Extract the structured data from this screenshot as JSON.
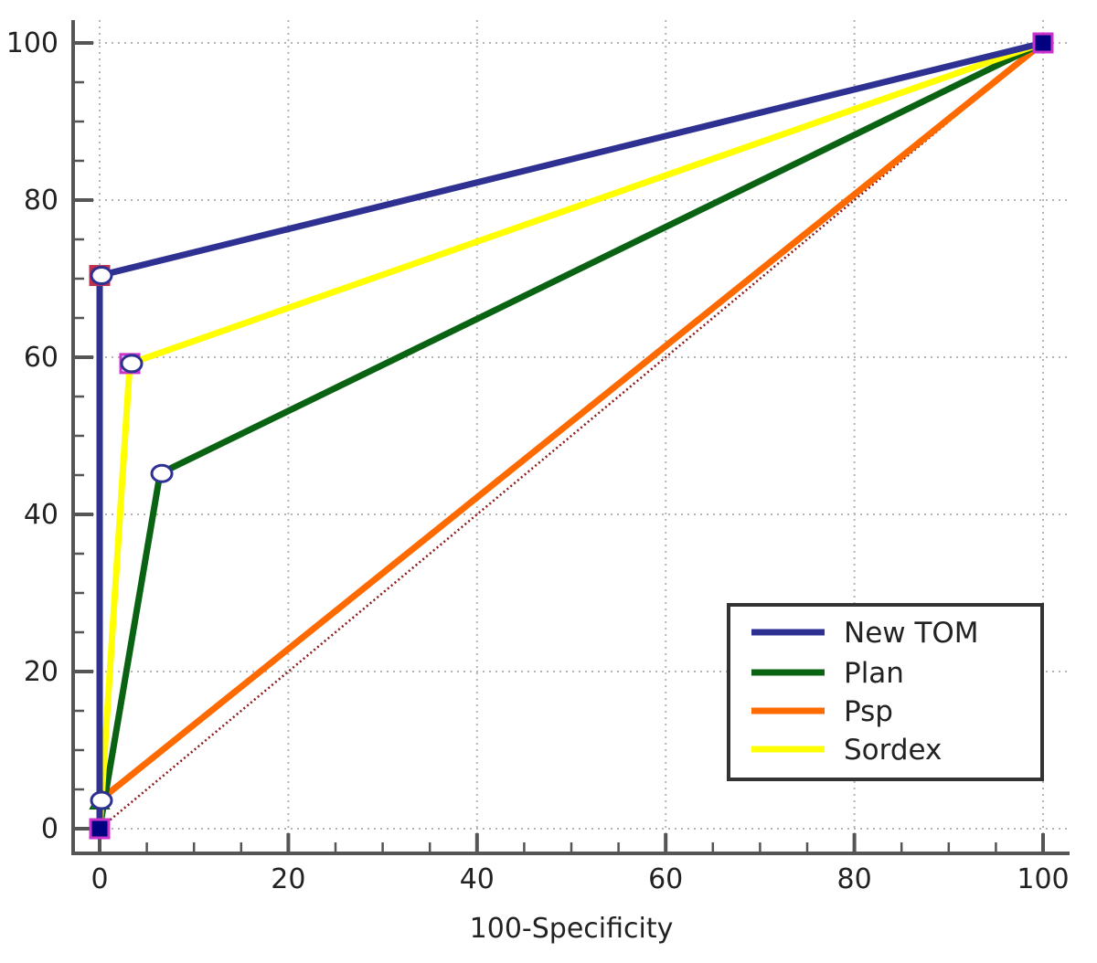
{
  "chart_data": {
    "type": "line",
    "title": "",
    "xlabel": "100-Specificity",
    "ylabel": "",
    "xlim": [
      0,
      100
    ],
    "ylim": [
      0,
      100
    ],
    "x_ticks": [
      0,
      20,
      40,
      60,
      80,
      100
    ],
    "y_ticks": [
      0,
      20,
      40,
      60,
      80,
      100
    ],
    "x_tick_labels": [
      "0",
      "20",
      "40",
      "60",
      "80",
      "100"
    ],
    "y_tick_labels": [
      "0",
      "20",
      "40",
      "60",
      "80",
      "100"
    ],
    "grid": true,
    "legend_position": "bottom-right",
    "reference_line": {
      "x": [
        0,
        100
      ],
      "y": [
        0,
        100
      ],
      "color": "#8b1a1a",
      "style": "dotted"
    },
    "series": [
      {
        "name": "New TOM",
        "color": "#2e3192",
        "x": [
          0,
          0,
          100
        ],
        "y": [
          0,
          70.4,
          100
        ]
      },
      {
        "name": "Plan",
        "color": "#0a6312",
        "x": [
          0,
          6.4,
          100
        ],
        "y": [
          0,
          45.2,
          100
        ]
      },
      {
        "name": "Psp",
        "color": "#ff6a00",
        "x": [
          0,
          0,
          100
        ],
        "y": [
          0,
          3.6,
          100
        ]
      },
      {
        "name": "Sordex",
        "color": "#ffff00",
        "x": [
          0,
          3.2,
          100
        ],
        "y": [
          0,
          59.2,
          100
        ]
      }
    ],
    "markers": [
      {
        "shape": "square",
        "fill": "#000080",
        "stroke": "#cc33cc",
        "x": 0,
        "y": 0
      },
      {
        "shape": "square",
        "fill": "#000080",
        "stroke": "#cc33cc",
        "x": 100,
        "y": 100
      },
      {
        "shape": "square",
        "fill": "#b03040",
        "stroke": "#c03050",
        "x": 0,
        "y": 70.4
      },
      {
        "shape": "square",
        "fill": "#e0e0e0",
        "stroke": "#cc33cc",
        "x": 3.2,
        "y": 59.2
      },
      {
        "shape": "circle",
        "fill": "#ffffff",
        "stroke": "#2e3192",
        "x": 0,
        "y": 70.4
      },
      {
        "shape": "circle",
        "fill": "#ffffff",
        "stroke": "#2e3192",
        "x": 3.2,
        "y": 59.2
      },
      {
        "shape": "circle",
        "fill": "#ffffff",
        "stroke": "#2e3192",
        "x": 6.4,
        "y": 45.2
      },
      {
        "shape": "circle",
        "fill": "#ffffff",
        "stroke": "#2e3192",
        "x": 0,
        "y": 3.6
      },
      {
        "shape": "triangle",
        "fill": "#2e8b57",
        "stroke": "#0a6312",
        "x": 0,
        "y": 0
      },
      {
        "shape": "triangle",
        "fill": "#2e8b57",
        "stroke": "#0a6312",
        "x": 0,
        "y": 3.6
      },
      {
        "shape": "triangle",
        "fill": "#2e8b57",
        "stroke": "#0a6312",
        "x": 100,
        "y": 100
      }
    ]
  }
}
